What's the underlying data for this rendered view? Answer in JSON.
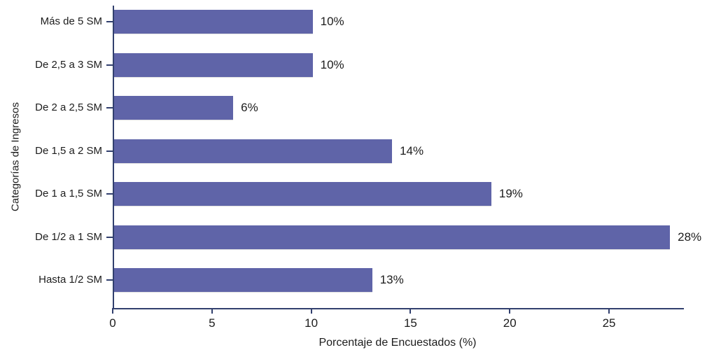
{
  "chart_data": {
    "type": "bar",
    "orientation": "horizontal",
    "categories": [
      "Más de 5 SM",
      "De 2,5 a 3 SM",
      "De 2 a 2,5 SM",
      "De 1,5 a 2 SM",
      "De 1 a 1,5 SM",
      "De 1/2 a 1 SM",
      "Hasta 1/2 SM"
    ],
    "values": [
      10,
      10,
      6,
      14,
      19,
      28,
      13
    ],
    "data_labels": [
      "10%",
      "10%",
      "6%",
      "14%",
      "19%",
      "28%",
      "13%"
    ],
    "xlabel": "Porcentaje de Encuestados (%)",
    "ylabel": "Categorías de Ingresos",
    "x_ticks": [
      0,
      5,
      10,
      15,
      20,
      25
    ],
    "x_tick_labels": [
      "0",
      "5",
      "10",
      "15",
      "20",
      "25"
    ],
    "xlim": [
      0,
      28.7
    ],
    "grid": false,
    "legend_position": "none",
    "bar_color": "#5f64a8",
    "axis_color": "#32406e"
  }
}
